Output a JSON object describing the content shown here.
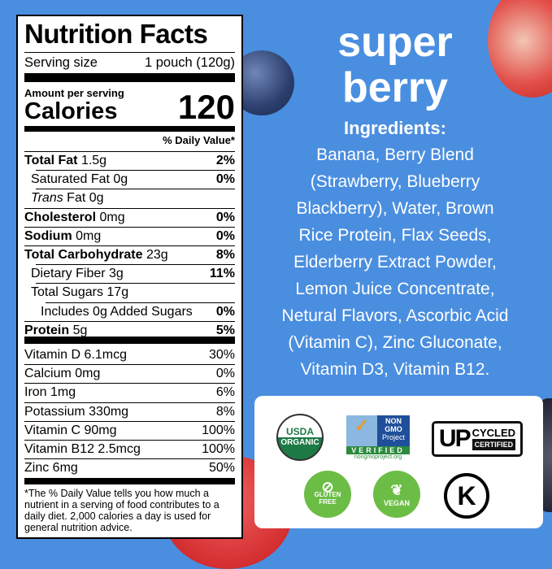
{
  "label": {
    "title": "Nutrition Facts",
    "serving_size_label": "Serving size",
    "serving_size": "1 pouch (120g)",
    "amount_per_serving": "Amount per serving",
    "calories_label": "Calories",
    "calories": "120",
    "dv_header": "% Daily Value*",
    "rows": [
      {
        "name": "Total Fat",
        "amount": "1.5g",
        "dv": "2%",
        "bold": true,
        "indent": 0
      },
      {
        "name": "Saturated Fat",
        "amount": "0g",
        "dv": "0%",
        "bold": false,
        "indent": 1
      },
      {
        "name": "Trans",
        "name2": "Fat",
        "amount": "0g",
        "dv": "",
        "bold": false,
        "indent": 1
      },
      {
        "name": "Cholesterol",
        "amount": "0mg",
        "dv": "0%",
        "bold": true,
        "indent": 0
      },
      {
        "name": "Sodium",
        "amount": "0mg",
        "dv": "0%",
        "bold": true,
        "indent": 0
      },
      {
        "name": "Total Carbohydrate",
        "amount": "23g",
        "dv": "8%",
        "bold": true,
        "indent": 0
      },
      {
        "name": "Dietary Fiber",
        "amount": "3g",
        "dv": "11%",
        "bold": false,
        "indent": 1
      },
      {
        "name": "Total Sugars",
        "amount": "17g",
        "dv": "",
        "bold": false,
        "indent": 1
      },
      {
        "name": "Includes 0g Added Sugars",
        "amount": "",
        "dv": "0%",
        "bold": false,
        "indent": 2
      },
      {
        "name": "Protein",
        "amount": "5g",
        "dv": "5%",
        "bold": true,
        "indent": 0
      }
    ],
    "vitamins": [
      {
        "name": "Vitamin D 6.1mcg",
        "dv": "30%"
      },
      {
        "name": "Calcium 0mg",
        "dv": "0%"
      },
      {
        "name": "Iron 1mg",
        "dv": "6%"
      },
      {
        "name": "Potassium 330mg",
        "dv": "8%"
      },
      {
        "name": "Vitamin C 90mg",
        "dv": "100%"
      },
      {
        "name": "Vitamin B12 2.5mcg",
        "dv": "100%"
      },
      {
        "name": "Zinc 6mg",
        "dv": "50%"
      }
    ],
    "footnote": "*The % Daily Value tells you how much a nutrient in a serving of food contributes to a daily diet. 2,000 calories a day is used for general nutrition advice."
  },
  "product": {
    "line1": "super",
    "line2": "berry"
  },
  "ingredients": {
    "heading": "Ingredients:",
    "lines": [
      "Banana, Berry Blend",
      "(Strawberry, Blueberry",
      "Blackberry), Water, Brown",
      "Rice Protein, Flax Seeds,",
      "Elderberry Extract Powder,",
      "Lemon Juice Concentrate,",
      "Netural Flavors, Ascorbic Acid",
      "(Vitamin C), Zinc Gluconate,",
      "Vitamin D3, Vitamin B12."
    ]
  },
  "certifications": {
    "usda": [
      "USDA",
      "ORGANIC"
    ],
    "nongmo": [
      "NON",
      "GMO",
      "Project",
      "VERIFIED",
      "nongmoproject.org"
    ],
    "upcycled": [
      "UP",
      "CYCLED",
      "CERTIFIED"
    ],
    "gluten_free": [
      "GLUTEN",
      "FREE"
    ],
    "vegan": "VEGAN",
    "kosher": "K"
  },
  "colors": {
    "background": "#4a8ee0",
    "badge_green": "#6cbd45",
    "usda_green": "#1e7a45"
  }
}
